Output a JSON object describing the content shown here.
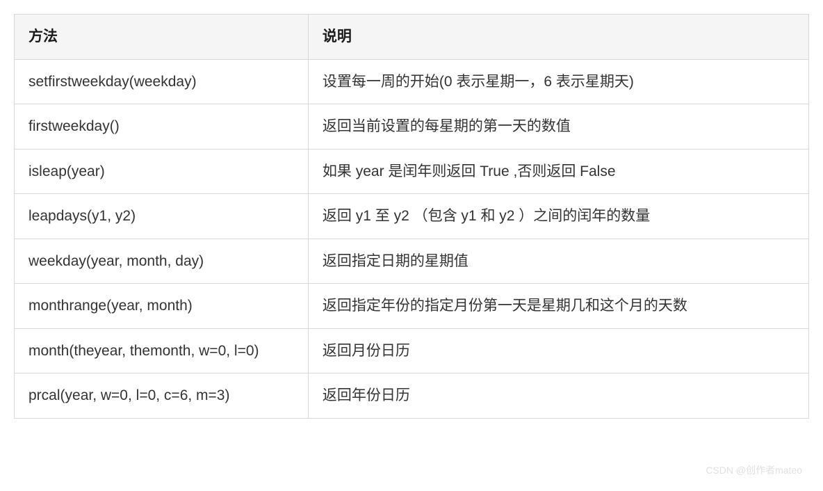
{
  "table": {
    "columns": [
      "方法",
      "说明"
    ],
    "rows": [
      [
        "setfirstweekday(weekday)",
        "设置每一周的开始(0 表示星期一，6 表示星期天)"
      ],
      [
        "firstweekday()",
        "返回当前设置的每星期的第一天的数值"
      ],
      [
        "isleap(year)",
        "如果 year 是闰年则返回 True ,否则返回 False"
      ],
      [
        "leapdays(y1, y2)",
        "返回 y1 至 y2 （包含 y1 和 y2 ）之间的闰年的数量"
      ],
      [
        "weekday(year, month, day)",
        "返回指定日期的星期值"
      ],
      [
        "monthrange(year, month)",
        "返回指定年份的指定月份第一天是星期几和这个月的天数"
      ],
      [
        "month(theyear, themonth, w=0, l=0)",
        "返回月份日历"
      ],
      [
        "prcal(year, w=0, l=0, c=6, m=3)",
        "返回年份日历"
      ]
    ],
    "header_bg": "#f5f5f5",
    "border_color": "#d8d8d8",
    "font_size": 21,
    "header_font_weight": 700,
    "cell_bg": "#ffffff",
    "text_color": "#333333"
  },
  "watermark": "CSDN @创作者mateo"
}
